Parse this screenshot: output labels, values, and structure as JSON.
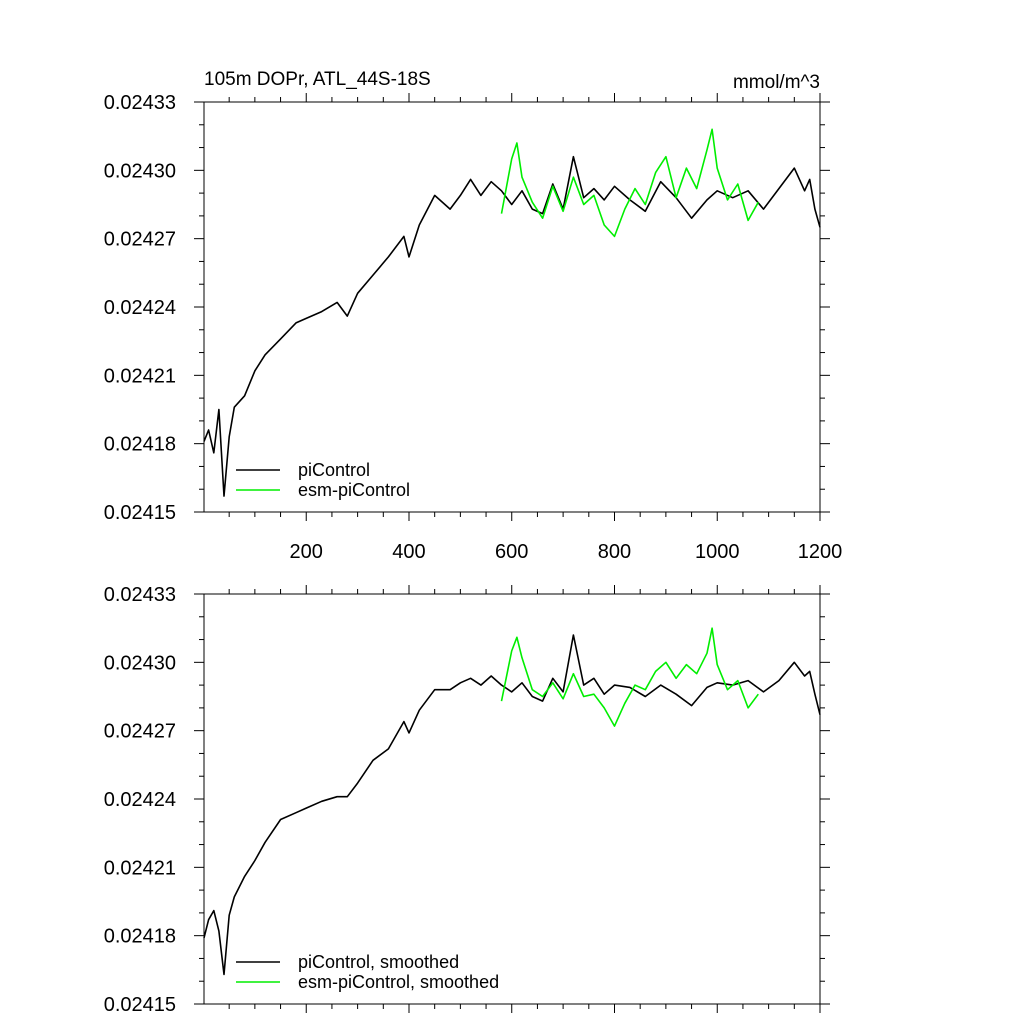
{
  "chart_data": [
    {
      "type": "line",
      "title": "105m DOPr, ATL_44S-18S",
      "units": "mmol/m^3",
      "xlim": [
        1,
        1200
      ],
      "ylim": [
        0.02415,
        0.02433
      ],
      "xticks": [
        200,
        400,
        600,
        800,
        1000,
        1200
      ],
      "yticks": [
        0.02415,
        0.02418,
        0.02421,
        0.02424,
        0.02427,
        0.0243,
        0.02433
      ],
      "ytick_labels": [
        "0.02415",
        "0.02418",
        "0.02421",
        "0.02424",
        "0.02427",
        "0.02430",
        "0.02433"
      ],
      "xtick_labels": [
        "200",
        "400",
        "600",
        "800",
        "1000",
        "1200"
      ],
      "legend_position": "bottom-left",
      "series": [
        {
          "name": "piControl",
          "color": "#000000",
          "x": [
            1,
            10,
            20,
            30,
            40,
            50,
            60,
            80,
            100,
            120,
            150,
            180,
            200,
            230,
            260,
            280,
            300,
            330,
            360,
            390,
            400,
            420,
            450,
            480,
            500,
            520,
            540,
            560,
            580,
            600,
            620,
            640,
            660,
            680,
            700,
            720,
            740,
            760,
            780,
            800,
            830,
            860,
            890,
            920,
            950,
            980,
            1000,
            1030,
            1060,
            1090,
            1120,
            1150,
            1170,
            1180,
            1190,
            1200
          ],
          "values": [
            0.024181,
            0.024186,
            0.024176,
            0.024195,
            0.024157,
            0.024183,
            0.024196,
            0.024201,
            0.024212,
            0.024219,
            0.024226,
            0.024233,
            0.024235,
            0.024238,
            0.024242,
            0.024236,
            0.024246,
            0.024254,
            0.024262,
            0.024271,
            0.024262,
            0.024276,
            0.024289,
            0.024283,
            0.024289,
            0.024296,
            0.024289,
            0.024295,
            0.024291,
            0.024285,
            0.024291,
            0.024283,
            0.024281,
            0.024294,
            0.024283,
            0.024306,
            0.024288,
            0.024292,
            0.024287,
            0.024293,
            0.024287,
            0.024282,
            0.024295,
            0.024288,
            0.024279,
            0.024287,
            0.024291,
            0.024288,
            0.024291,
            0.024283,
            0.024292,
            0.024301,
            0.024291,
            0.024296,
            0.024283,
            0.024275
          ]
        },
        {
          "name": "esm-piControl",
          "color": "#00ee00",
          "x": [
            580,
            600,
            610,
            620,
            640,
            660,
            680,
            700,
            720,
            740,
            760,
            780,
            800,
            820,
            840,
            860,
            880,
            900,
            920,
            940,
            960,
            980,
            990,
            1000,
            1020,
            1040,
            1060,
            1080
          ],
          "values": [
            0.024281,
            0.024305,
            0.024312,
            0.024297,
            0.024286,
            0.024279,
            0.024293,
            0.024282,
            0.024297,
            0.024285,
            0.024289,
            0.024276,
            0.024271,
            0.024283,
            0.024292,
            0.024285,
            0.024299,
            0.024306,
            0.024288,
            0.024301,
            0.024292,
            0.024309,
            0.024318,
            0.024301,
            0.024287,
            0.024294,
            0.024278,
            0.024286
          ]
        }
      ]
    },
    {
      "type": "line",
      "title": "",
      "xlim": [
        1,
        1200
      ],
      "ylim": [
        0.02415,
        0.02433
      ],
      "yticks": [
        0.02415,
        0.02418,
        0.02421,
        0.02424,
        0.02427,
        0.0243,
        0.02433
      ],
      "ytick_labels": [
        "0.02415",
        "0.02418",
        "0.02421",
        "0.02424",
        "0.02427",
        "0.02430",
        "0.02433"
      ],
      "legend_position": "bottom-left",
      "series": [
        {
          "name": "piControl, smoothed",
          "color": "#000000",
          "x": [
            1,
            10,
            20,
            30,
            40,
            50,
            60,
            80,
            100,
            120,
            150,
            180,
            200,
            230,
            260,
            280,
            300,
            330,
            360,
            390,
            400,
            420,
            450,
            480,
            500,
            520,
            540,
            560,
            580,
            600,
            620,
            640,
            660,
            680,
            700,
            720,
            740,
            760,
            780,
            800,
            830,
            860,
            890,
            920,
            950,
            980,
            1000,
            1030,
            1060,
            1090,
            1120,
            1150,
            1170,
            1180,
            1190,
            1200
          ],
          "values": [
            0.024179,
            0.024187,
            0.024191,
            0.024182,
            0.024163,
            0.024189,
            0.024197,
            0.024206,
            0.024213,
            0.024221,
            0.024231,
            0.024234,
            0.024236,
            0.024239,
            0.024241,
            0.024241,
            0.024247,
            0.024257,
            0.024262,
            0.024274,
            0.024269,
            0.024279,
            0.024288,
            0.024288,
            0.024291,
            0.024293,
            0.02429,
            0.024294,
            0.02429,
            0.024287,
            0.024291,
            0.024285,
            0.024283,
            0.024293,
            0.024287,
            0.024312,
            0.02429,
            0.024293,
            0.024286,
            0.02429,
            0.024289,
            0.024285,
            0.02429,
            0.024286,
            0.024281,
            0.024289,
            0.024291,
            0.02429,
            0.024292,
            0.024287,
            0.024292,
            0.0243,
            0.024294,
            0.024296,
            0.024286,
            0.024277
          ]
        },
        {
          "name": "esm-piControl, smoothed",
          "color": "#00ee00",
          "x": [
            580,
            600,
            610,
            620,
            640,
            660,
            680,
            700,
            720,
            740,
            760,
            780,
            800,
            820,
            840,
            860,
            880,
            900,
            920,
            940,
            960,
            980,
            990,
            1000,
            1020,
            1040,
            1060,
            1080
          ],
          "values": [
            0.024283,
            0.024305,
            0.024311,
            0.024302,
            0.024288,
            0.024285,
            0.024291,
            0.024284,
            0.024295,
            0.024285,
            0.024286,
            0.02428,
            0.024272,
            0.024282,
            0.02429,
            0.024288,
            0.024296,
            0.0243,
            0.024293,
            0.024299,
            0.024295,
            0.024304,
            0.024315,
            0.024299,
            0.024288,
            0.024292,
            0.02428,
            0.024286
          ]
        }
      ]
    }
  ]
}
